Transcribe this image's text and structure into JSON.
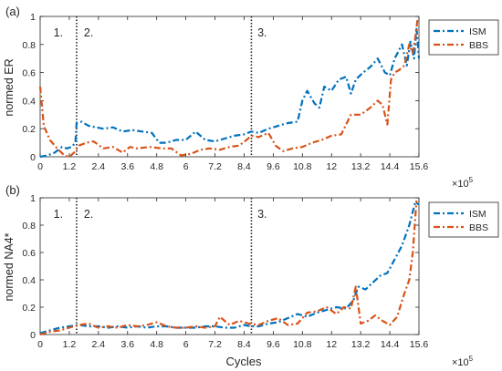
{
  "figure": {
    "xlabel": "Cycles",
    "exponent": "×10",
    "exponent_power": "5"
  },
  "chart_data": [
    {
      "type": "line",
      "panel_label": "(a)",
      "ylabel": "normed ER",
      "xlabel": "",
      "xlim": [
        0,
        15.6
      ],
      "ylim": [
        0,
        1
      ],
      "x_unit": "×10^5 cycles",
      "xticks": [
        "0",
        "1.2",
        "2.4",
        "3.6",
        "4.8",
        "6",
        "7.2",
        "8.4",
        "9.6",
        "10.8",
        "12",
        "13.2",
        "14.4",
        "15.6"
      ],
      "xtick_values": [
        0,
        1.2,
        2.4,
        3.6,
        4.8,
        6,
        7.2,
        8.4,
        9.6,
        10.8,
        12,
        13.2,
        14.4,
        15.6
      ],
      "yticks": [
        "0",
        "0.2",
        "0.4",
        "0.6",
        "0.8",
        "1"
      ],
      "ytick_values": [
        0,
        0.2,
        0.4,
        0.6,
        0.8,
        1
      ],
      "phase_lines": [
        1.5,
        8.7
      ],
      "phase_labels": [
        {
          "text": "1.",
          "x": 0.55
        },
        {
          "text": "2.",
          "x": 1.8
        },
        {
          "text": "3.",
          "x": 8.95
        }
      ],
      "legend_position": "top-right",
      "series": [
        {
          "name": "ISM",
          "color": "#0072BD",
          "x": [
            0,
            0.3,
            0.6,
            0.9,
            1.1,
            1.3,
            1.45,
            1.5,
            1.7,
            2.0,
            2.3,
            2.6,
            3.0,
            3.4,
            3.8,
            4.2,
            4.6,
            4.9,
            5.2,
            5.6,
            6.0,
            6.4,
            6.8,
            7.2,
            7.6,
            8.0,
            8.4,
            8.7,
            9.0,
            9.4,
            9.8,
            10.2,
            10.6,
            10.8,
            11.0,
            11.3,
            11.5,
            11.7,
            12.0,
            12.3,
            12.6,
            12.8,
            13.0,
            13.3,
            13.6,
            13.9,
            14.2,
            14.4,
            14.6,
            14.9,
            15.1,
            15.25,
            15.4,
            15.5,
            15.6
          ],
          "y": [
            0,
            0.01,
            0.03,
            0.07,
            0.06,
            0.07,
            0.1,
            0.24,
            0.25,
            0.22,
            0.21,
            0.2,
            0.21,
            0.18,
            0.19,
            0.18,
            0.17,
            0.1,
            0.1,
            0.12,
            0.12,
            0.18,
            0.12,
            0.11,
            0.13,
            0.15,
            0.16,
            0.18,
            0.17,
            0.2,
            0.22,
            0.24,
            0.25,
            0.4,
            0.47,
            0.38,
            0.35,
            0.5,
            0.47,
            0.55,
            0.57,
            0.45,
            0.55,
            0.6,
            0.64,
            0.7,
            0.6,
            0.58,
            0.7,
            0.8,
            0.65,
            0.82,
            0.7,
            0.92,
            0.7
          ]
        },
        {
          "name": "BBS",
          "color": "#D95319",
          "x": [
            0,
            0.15,
            0.4,
            0.7,
            1.0,
            1.2,
            1.4,
            1.6,
            1.9,
            2.2,
            2.6,
            3.0,
            3.4,
            3.7,
            4.0,
            4.5,
            5.0,
            5.4,
            5.8,
            6.2,
            6.6,
            7.0,
            7.4,
            7.8,
            8.2,
            8.5,
            8.7,
            9.0,
            9.4,
            9.7,
            10.0,
            10.4,
            10.8,
            11.2,
            11.6,
            12.0,
            12.4,
            12.8,
            13.2,
            13.6,
            13.9,
            14.1,
            14.3,
            14.45,
            14.6,
            14.8,
            15.0,
            15.2,
            15.35,
            15.45,
            15.55
          ],
          "y": [
            0.5,
            0.22,
            0.12,
            0.06,
            0.01,
            0.0,
            0.03,
            0.08,
            0.1,
            0.11,
            0.06,
            0.07,
            0.03,
            0.07,
            0.06,
            0.07,
            0.06,
            0.06,
            0.01,
            0.02,
            0.05,
            0.06,
            0.05,
            0.07,
            0.08,
            0.12,
            0.15,
            0.14,
            0.17,
            0.08,
            0.04,
            0.06,
            0.07,
            0.1,
            0.12,
            0.15,
            0.16,
            0.3,
            0.3,
            0.35,
            0.4,
            0.37,
            0.23,
            0.55,
            0.6,
            0.62,
            0.65,
            0.8,
            0.74,
            0.85,
            0.99
          ]
        }
      ]
    },
    {
      "type": "line",
      "panel_label": "(b)",
      "ylabel": "normed NA4*",
      "xlabel": "Cycles",
      "xlim": [
        0,
        15.6
      ],
      "ylim": [
        0,
        1
      ],
      "x_unit": "×10^5 cycles",
      "xticks": [
        "0",
        "1.2",
        "2.4",
        "3.6",
        "4.8",
        "6",
        "7.2",
        "8.4",
        "9.6",
        "10.8",
        "12",
        "13.2",
        "14.4",
        "15.6"
      ],
      "xtick_values": [
        0,
        1.2,
        2.4,
        3.6,
        4.8,
        6,
        7.2,
        8.4,
        9.6,
        10.8,
        12,
        13.2,
        14.4,
        15.6
      ],
      "yticks": [
        "0",
        "0.2",
        "0.4",
        "0.6",
        "0.8",
        "1"
      ],
      "ytick_values": [
        0,
        0.2,
        0.4,
        0.6,
        0.8,
        1
      ],
      "phase_lines": [
        1.5,
        8.7
      ],
      "phase_labels": [
        {
          "text": "1.",
          "x": 0.55
        },
        {
          "text": "2.",
          "x": 1.8
        },
        {
          "text": "3.",
          "x": 8.95
        }
      ],
      "legend_position": "top-right",
      "series": [
        {
          "name": "ISM",
          "color": "#0072BD",
          "x": [
            0,
            0.4,
            0.8,
            1.2,
            1.6,
            2.0,
            2.4,
            2.8,
            3.2,
            3.6,
            4.0,
            4.4,
            4.8,
            5.2,
            5.6,
            6.0,
            6.4,
            6.8,
            7.2,
            7.6,
            8.0,
            8.4,
            8.7,
            9.0,
            9.4,
            9.8,
            10.2,
            10.6,
            11.0,
            11.4,
            11.8,
            12.2,
            12.6,
            12.9,
            13.1,
            13.4,
            13.7,
            14.0,
            14.3,
            14.6,
            14.9,
            15.2,
            15.45,
            15.6
          ],
          "y": [
            0.01,
            0.03,
            0.05,
            0.06,
            0.07,
            0.06,
            0.06,
            0.05,
            0.06,
            0.05,
            0.06,
            0.05,
            0.06,
            0.06,
            0.05,
            0.05,
            0.05,
            0.06,
            0.06,
            0.05,
            0.05,
            0.07,
            0.06,
            0.06,
            0.08,
            0.09,
            0.12,
            0.15,
            0.13,
            0.16,
            0.18,
            0.2,
            0.19,
            0.25,
            0.35,
            0.33,
            0.38,
            0.43,
            0.45,
            0.55,
            0.65,
            0.8,
            0.97,
            0.95
          ]
        },
        {
          "name": "BBS",
          "color": "#D95319",
          "x": [
            0,
            0.4,
            0.8,
            1.2,
            1.6,
            2.0,
            2.4,
            2.8,
            3.2,
            3.6,
            4.0,
            4.4,
            4.8,
            5.2,
            5.6,
            6.0,
            6.4,
            6.8,
            7.2,
            7.4,
            7.8,
            8.2,
            8.6,
            9.0,
            9.4,
            9.8,
            10.2,
            10.6,
            11.0,
            11.4,
            11.8,
            12.2,
            12.5,
            12.8,
            13.0,
            13.2,
            13.5,
            13.8,
            14.1,
            14.4,
            14.7,
            15.0,
            15.2,
            15.35,
            15.5
          ],
          "y": [
            0.0,
            0.02,
            0.03,
            0.05,
            0.07,
            0.08,
            0.05,
            0.06,
            0.05,
            0.07,
            0.06,
            0.07,
            0.09,
            0.06,
            0.05,
            0.05,
            0.06,
            0.05,
            0.06,
            0.13,
            0.07,
            0.1,
            0.08,
            0.07,
            0.1,
            0.12,
            0.07,
            0.08,
            0.16,
            0.17,
            0.2,
            0.15,
            0.2,
            0.19,
            0.35,
            0.08,
            0.1,
            0.14,
            0.1,
            0.07,
            0.13,
            0.3,
            0.4,
            0.6,
            0.98
          ]
        }
      ]
    }
  ]
}
